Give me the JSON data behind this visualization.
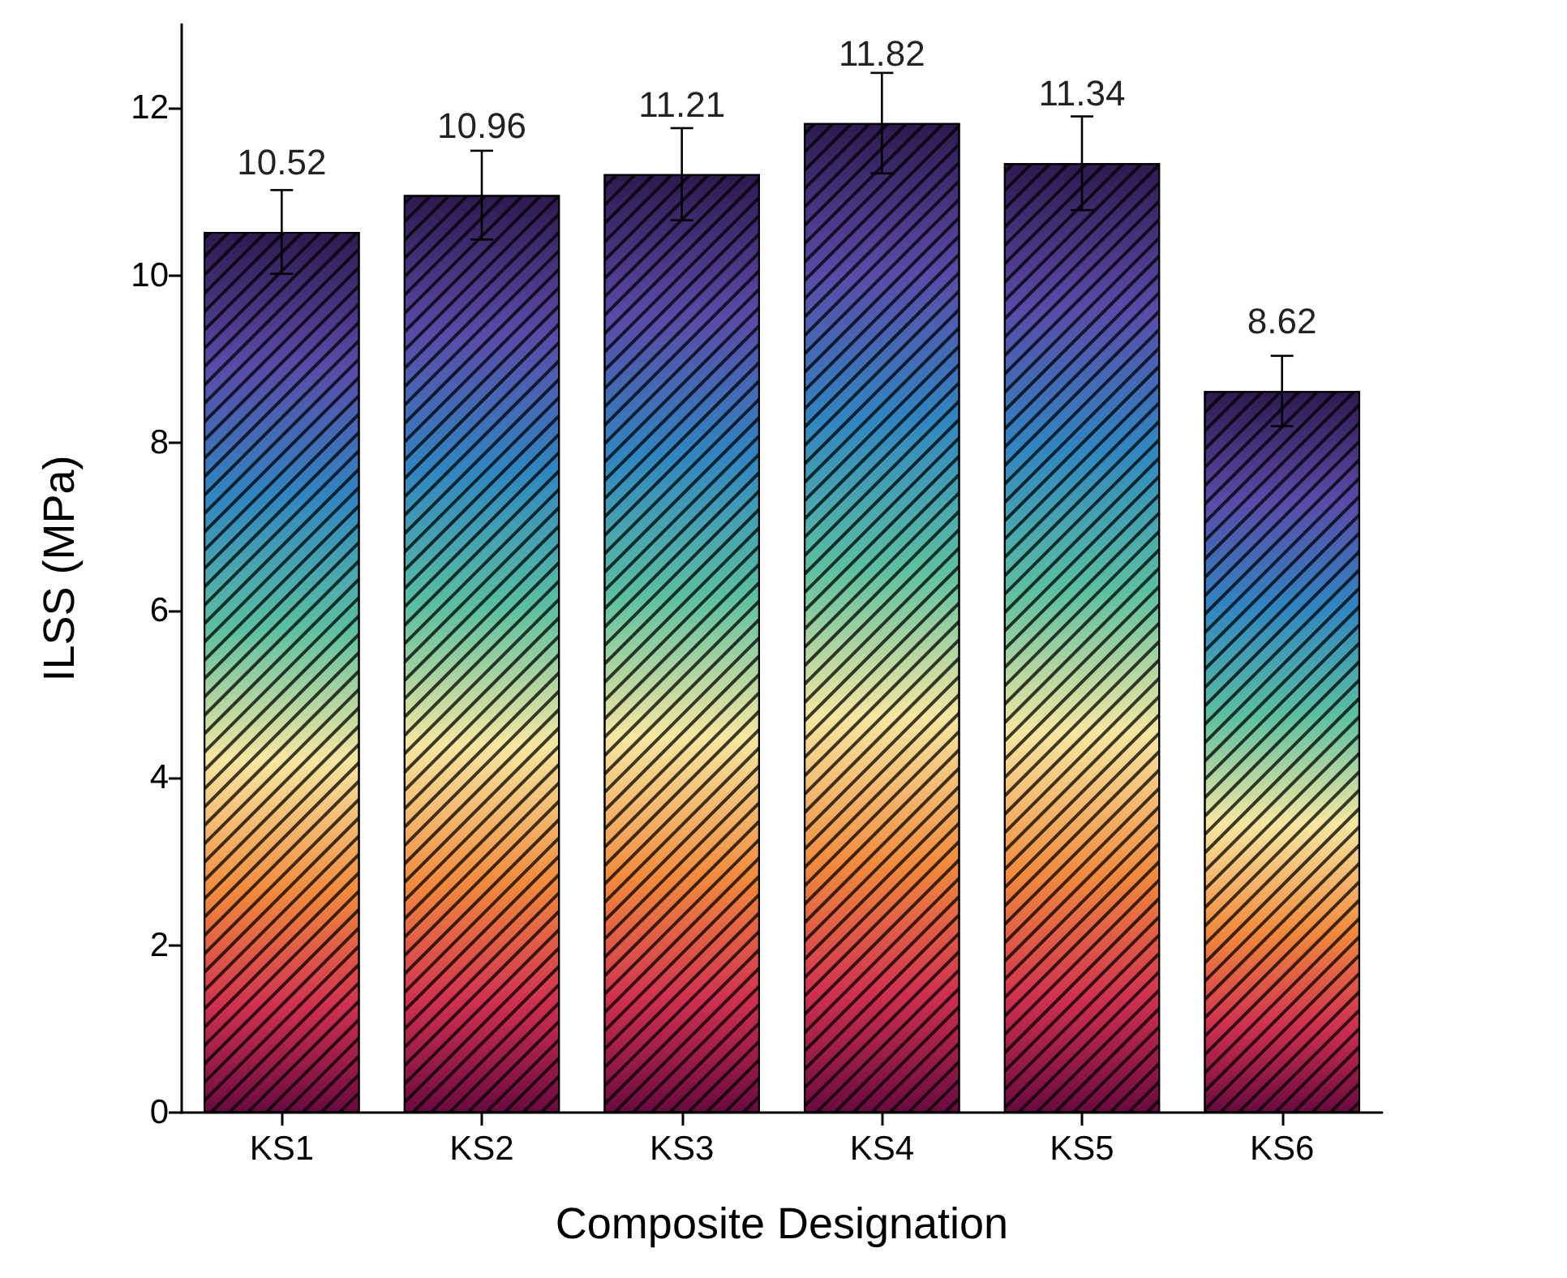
{
  "chart_data": {
    "type": "bar",
    "xlabel": "Composite Designation",
    "ylabel": "ILSS (MPa)",
    "categories": [
      "KS1",
      "KS2",
      "KS3",
      "KS4",
      "KS5",
      "KS6"
    ],
    "values": [
      10.52,
      10.96,
      11.21,
      11.82,
      11.34,
      8.62
    ],
    "errors": [
      0.5,
      0.53,
      0.55,
      0.6,
      0.56,
      0.42
    ],
    "data_labels": true,
    "ylim": [
      0,
      13
    ],
    "yticks": [
      0,
      2,
      4,
      6,
      8,
      10,
      12
    ],
    "grid": false
  }
}
